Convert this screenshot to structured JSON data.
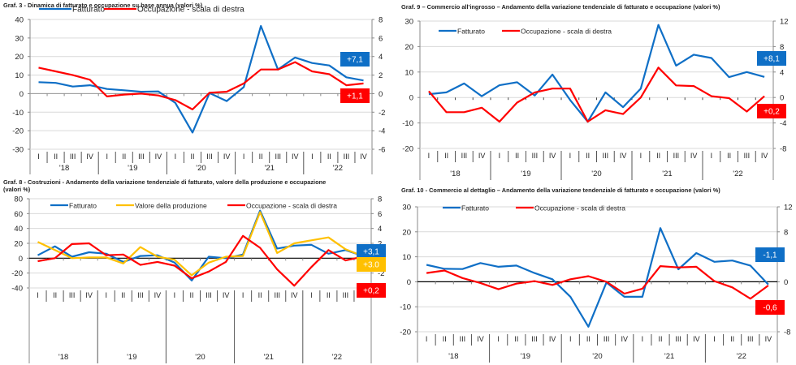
{
  "quarters": [
    "I",
    "II",
    "III",
    "IV",
    "I",
    "II",
    "III",
    "IV",
    "I",
    "II",
    "III",
    "IV",
    "I",
    "II",
    "III",
    "IV",
    "I",
    "II",
    "III",
    "IV"
  ],
  "years": [
    "'18",
    "'19",
    "'20",
    "'21",
    "'22"
  ],
  "colors": {
    "fatturato": "#0f6fc6",
    "occupazione": "#ff0000",
    "valore": "#ffc000"
  },
  "chart_data": [
    {
      "id": "graf3",
      "type": "line",
      "title": "Graf. 3 - Dinamica di fatturato e occupazione su base annua (valori %)",
      "title_line2": "",
      "ylim_left": [
        -30,
        40
      ],
      "yticks_left": [
        40,
        30,
        20,
        10,
        0,
        -10,
        -20,
        -30
      ],
      "ylim_right": [
        -6,
        8
      ],
      "yticks_right": [
        8,
        6,
        4,
        2,
        0,
        -2,
        -4,
        -6
      ],
      "zero_line_black": false,
      "grid": true,
      "legend_position": "top-left",
      "series": [
        {
          "name": "Fatturato",
          "color_key": "fatturato",
          "axis": "left",
          "values": [
            6.2,
            5.8,
            3.8,
            4.5,
            2.5,
            1.8,
            1.0,
            1.2,
            -5,
            -21,
            0.3,
            -4,
            3.5,
            36.5,
            13,
            19.5,
            16.5,
            15.2,
            8.8,
            7.1
          ]
        },
        {
          "name": "Occupazione - scala di destra",
          "color_key": "occupazione",
          "axis": "right",
          "values": [
            2.8,
            2.4,
            2.0,
            1.5,
            -0.3,
            -0.1,
            0,
            -0.2,
            -0.7,
            -1.7,
            0.1,
            0.2,
            1.1,
            2.6,
            2.6,
            3.4,
            2.4,
            2.1,
            0.9,
            1.1
          ]
        }
      ],
      "labels": [
        {
          "text": "+7,1",
          "color_key": "fatturato",
          "anchor": "top"
        },
        {
          "text": "+1,1",
          "color_key": "occupazione",
          "anchor": "below-zero"
        }
      ]
    },
    {
      "id": "graf9",
      "type": "line",
      "title": "Graf. 9 – Commercio all'ingrosso – Andamento della variazione tendenziale di fatturato e occupazione (valori %)",
      "title_line2": "",
      "ylim_left": [
        -20,
        30
      ],
      "yticks_left": [
        30,
        20,
        10,
        0,
        -10,
        -20
      ],
      "ylim_right": [
        -8,
        12
      ],
      "yticks_right": [
        12,
        8,
        4,
        0,
        -4,
        -8
      ],
      "zero_line_black": false,
      "zero_line_dotted": true,
      "grid": true,
      "legend_position": "top-left",
      "series": [
        {
          "name": "Fatturato",
          "color_key": "fatturato",
          "axis": "left",
          "values": [
            1.3,
            2,
            5.5,
            0.5,
            4.8,
            6,
            0.8,
            9,
            -1,
            -9.5,
            2,
            -3.8,
            3.5,
            28.5,
            12.5,
            16.8,
            15.5,
            8,
            10,
            8.1
          ]
        },
        {
          "name": "Occupazione - scala di destra",
          "color_key": "occupazione",
          "axis": "right",
          "values": [
            1.0,
            -2.3,
            -2.3,
            -1.6,
            -3.8,
            -0.8,
            0.8,
            1.4,
            1.4,
            -3.8,
            -2.0,
            -2.6,
            0,
            4.7,
            1.9,
            1.8,
            0.2,
            -0.1,
            -2.2,
            0.2
          ]
        }
      ],
      "labels": [
        {
          "text": "+8,1",
          "color_key": "fatturato",
          "anchor": "top"
        },
        {
          "text": "+0,2",
          "color_key": "occupazione",
          "anchor": "below-zero"
        }
      ]
    },
    {
      "id": "graf8",
      "type": "line",
      "title": "Graf. 8 - Costruzioni - Andamento della variazione tendenziale di fatturato, valore della produzione e occupazione",
      "title_line2": "(valori %)",
      "ylim_left": [
        -40,
        80
      ],
      "yticks_left": [
        80,
        60,
        40,
        20,
        0,
        -20,
        -40
      ],
      "ylim_right": [
        -4,
        8
      ],
      "yticks_right": [
        8,
        6,
        4,
        2,
        0,
        -2,
        -4
      ],
      "zero_line_black": true,
      "grid": true,
      "legend_position": "top",
      "series": [
        {
          "name": "Fatturato",
          "color_key": "fatturato",
          "axis": "left",
          "values": [
            4,
            16,
            2,
            8,
            6,
            -5,
            3,
            4,
            -6,
            -30,
            2,
            0,
            5,
            64,
            13,
            17,
            18,
            6,
            11,
            3.1
          ]
        },
        {
          "name": "Valore della produzione",
          "color_key": "valore",
          "axis": "left",
          "values": [
            22,
            11,
            0,
            1,
            1,
            -7,
            15,
            2,
            -2,
            -23,
            -6,
            2,
            3,
            62,
            7,
            20,
            24,
            28,
            12,
            3.0
          ]
        },
        {
          "name": "Occupazione - scala di destra",
          "color_key": "occupazione",
          "axis": "right",
          "values": [
            -0.4,
            0,
            1.9,
            2.0,
            0.4,
            0.5,
            -0.9,
            -0.5,
            -1.0,
            -2.7,
            -1.8,
            -0.5,
            3.0,
            1.4,
            -1.5,
            -3.7,
            -1.2,
            1.1,
            -0.3,
            0.2
          ]
        }
      ],
      "labels": [
        {
          "text": "+3,1",
          "color_key": "fatturato",
          "anchor": "top"
        },
        {
          "text": "+3.0",
          "color_key": "valore",
          "anchor": "mid"
        },
        {
          "text": "+0,2",
          "color_key": "occupazione",
          "anchor": "below-zero"
        }
      ]
    },
    {
      "id": "graf10",
      "type": "line",
      "title": "Graf. 10 - Commercio al dettaglio – Andamento della variazione tendenziale di fatturato e occupazione (valori %)",
      "title_line2": "",
      "ylim_left": [
        -20,
        30
      ],
      "yticks_left": [
        30,
        20,
        10,
        0,
        -10,
        -20
      ],
      "ylim_right": [
        -8,
        12
      ],
      "yticks_right": [
        12,
        8,
        "",
        0,
        "",
        -8
      ],
      "zero_line_black": true,
      "grid": true,
      "legend_position": "top-left",
      "series": [
        {
          "name": "Fatturato",
          "color_key": "fatturato",
          "axis": "left",
          "values": [
            6.8,
            5.2,
            5.1,
            7.5,
            6,
            6.5,
            3.5,
            1,
            -6,
            -18,
            -0.3,
            -6,
            -6,
            21.5,
            5,
            11.5,
            8,
            8.5,
            6.5,
            -1.1
          ]
        },
        {
          "name": "Occupazione - scala di destra",
          "color_key": "occupazione",
          "axis": "right",
          "values": [
            1.4,
            1.8,
            0.6,
            -0.2,
            -1.2,
            -0.3,
            0.1,
            -0.5,
            0.4,
            0.9,
            0,
            -1.9,
            -1.1,
            2.5,
            2.3,
            2.4,
            0.1,
            -0.9,
            -2.7,
            -0.6
          ]
        }
      ],
      "labels": [
        {
          "text": "-1,1",
          "color_key": "fatturato",
          "anchor": "top"
        },
        {
          "text": "-0,6",
          "color_key": "occupazione",
          "anchor": "below-zero"
        }
      ]
    }
  ]
}
